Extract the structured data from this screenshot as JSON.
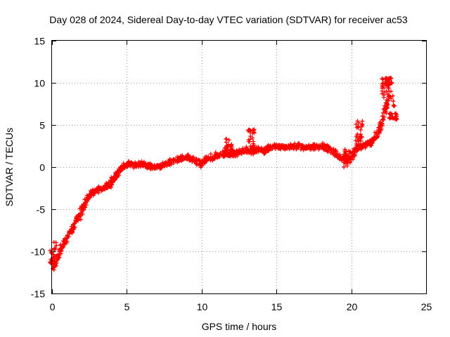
{
  "chart_data": {
    "type": "scatter",
    "title": "Day 028 of 2024, Sidereal Day-to-day VTEC variation (SDTVAR) for receiver ac53",
    "xlabel": "GPS time / hours",
    "ylabel": "SDTVAR / TECUs",
    "xlim": [
      0,
      25
    ],
    "ylim": [
      -15,
      15
    ],
    "xticks": [
      0,
      5,
      10,
      15,
      20,
      25
    ],
    "yticks": [
      -15,
      -10,
      -5,
      0,
      5,
      10,
      15
    ],
    "grid": true,
    "marker": "+",
    "series": [
      {
        "name": "SDTVAR",
        "color": "#ff0000",
        "trace": [
          [
            0.0,
            -11.0
          ],
          [
            0.15,
            -11.8
          ],
          [
            0.3,
            -11.0
          ],
          [
            0.5,
            -10.0
          ],
          [
            0.8,
            -9.0
          ],
          [
            1.0,
            -8.6
          ],
          [
            1.3,
            -7.5
          ],
          [
            1.6,
            -6.5
          ],
          [
            1.9,
            -5.6
          ],
          [
            2.2,
            -4.2
          ],
          [
            2.5,
            -3.4
          ],
          [
            2.8,
            -2.9
          ],
          [
            3.2,
            -2.6
          ],
          [
            3.5,
            -2.5
          ],
          [
            3.8,
            -2.2
          ],
          [
            4.1,
            -1.4
          ],
          [
            4.4,
            -0.7
          ],
          [
            4.8,
            0.1
          ],
          [
            5.2,
            0.4
          ],
          [
            5.6,
            0.2
          ],
          [
            6.0,
            0.3
          ],
          [
            6.5,
            0.1
          ],
          [
            7.0,
            0.0
          ],
          [
            7.5,
            0.3
          ],
          [
            8.0,
            0.6
          ],
          [
            8.5,
            0.9
          ],
          [
            9.0,
            1.2
          ],
          [
            9.3,
            1.0
          ],
          [
            9.7,
            0.6
          ],
          [
            10.0,
            0.4
          ],
          [
            10.3,
            0.9
          ],
          [
            10.7,
            1.1
          ],
          [
            11.0,
            1.4
          ],
          [
            11.5,
            1.5
          ],
          [
            12.0,
            1.6
          ],
          [
            12.5,
            1.8
          ],
          [
            13.0,
            2.0
          ],
          [
            13.4,
            1.8
          ],
          [
            13.8,
            2.1
          ],
          [
            14.2,
            1.9
          ],
          [
            14.6,
            2.3
          ],
          [
            15.0,
            2.5
          ],
          [
            15.5,
            2.4
          ],
          [
            16.0,
            2.4
          ],
          [
            16.5,
            2.5
          ],
          [
            17.0,
            2.3
          ],
          [
            17.5,
            2.4
          ],
          [
            18.0,
            2.5
          ],
          [
            18.5,
            2.2
          ],
          [
            19.0,
            1.5
          ],
          [
            19.5,
            1.0
          ],
          [
            19.9,
            0.8
          ],
          [
            20.2,
            1.8
          ],
          [
            20.5,
            2.4
          ],
          [
            20.8,
            2.6
          ],
          [
            21.1,
            2.8
          ],
          [
            21.4,
            3.0
          ],
          [
            21.7,
            3.8
          ],
          [
            22.0,
            5.0
          ],
          [
            22.2,
            6.2
          ],
          [
            22.4,
            7.4
          ],
          [
            22.6,
            8.8
          ],
          [
            22.75,
            8.2
          ],
          [
            22.9,
            7.0
          ]
        ],
        "bursts": [
          {
            "x": 0.1,
            "y": -10.5,
            "span": 3.2
          },
          {
            "x": 11.8,
            "y": 2.4,
            "span": 2.2
          },
          {
            "x": 13.3,
            "y": 3.1,
            "span": 2.8
          },
          {
            "x": 19.7,
            "y": 1.2,
            "span": 2.4
          },
          {
            "x": 20.5,
            "y": 4.0,
            "span": 3.0
          },
          {
            "x": 22.3,
            "y": 9.5,
            "span": 2.5
          },
          {
            "x": 22.5,
            "y": 10.2,
            "span": 0.8
          },
          {
            "x": 22.8,
            "y": 6.0,
            "span": 0.8
          }
        ]
      }
    ]
  }
}
